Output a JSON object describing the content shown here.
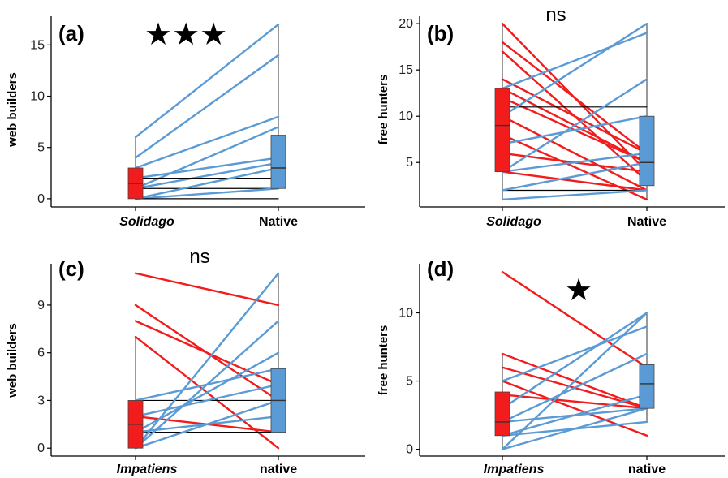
{
  "colors": {
    "red": "#f21c1c",
    "blue": "#5b9bd5",
    "whisker": "#333333",
    "axis": "#000000"
  },
  "chart_data": [
    {
      "type": "box-paired",
      "panel_label": "(a)",
      "significance": "★★★",
      "ylabel": "web builders",
      "categories": [
        "Solidago",
        "Native"
      ],
      "category_italic": [
        true,
        false
      ],
      "ylim": [
        -0.8,
        17.8
      ],
      "yticks": [
        0,
        5,
        10,
        15
      ],
      "boxes": [
        {
          "min": 0,
          "q1": 0,
          "median": 1.5,
          "q3": 3,
          "max": 6
        },
        {
          "min": 1,
          "q1": 1,
          "median": 3,
          "q3": 6.2,
          "max": 17
        }
      ],
      "pairs": [
        {
          "from": 6,
          "to": 17,
          "color": "blue"
        },
        {
          "from": 4,
          "to": 14,
          "color": "blue"
        },
        {
          "from": 3,
          "to": 8,
          "color": "blue"
        },
        {
          "from": 1,
          "to": 7,
          "color": "blue"
        },
        {
          "from": 2,
          "to": 4,
          "color": "blue"
        },
        {
          "from": 1,
          "to": 3.5,
          "color": "blue"
        },
        {
          "from": 2,
          "to": 2,
          "color": "black"
        },
        {
          "from": 1,
          "to": 1,
          "color": "black"
        },
        {
          "from": 0,
          "to": 3,
          "color": "blue"
        },
        {
          "from": 0,
          "to": 1,
          "color": "blue"
        },
        {
          "from": 0,
          "to": 0,
          "color": "black"
        }
      ]
    },
    {
      "type": "box-paired",
      "panel_label": "(b)",
      "significance": "ns",
      "ylabel": "free hunters",
      "categories": [
        "Solidago",
        "Native"
      ],
      "category_italic": [
        true,
        false
      ],
      "ylim": [
        0.2,
        20.8
      ],
      "yticks": [
        5,
        10,
        15,
        20
      ],
      "boxes": [
        {
          "min": 1,
          "q1": 4,
          "median": 9,
          "q3": 13,
          "max": 20
        },
        {
          "min": 1,
          "q1": 2.5,
          "median": 5,
          "q3": 10,
          "max": 20
        }
      ],
      "pairs": [
        {
          "from": 20,
          "to": 4,
          "color": "red"
        },
        {
          "from": 18,
          "to": 6,
          "color": "red"
        },
        {
          "from": 17,
          "to": 3,
          "color": "red"
        },
        {
          "from": 14,
          "to": 6,
          "color": "red"
        },
        {
          "from": 13,
          "to": 5,
          "color": "red"
        },
        {
          "from": 12,
          "to": 5,
          "color": "red"
        },
        {
          "from": 10,
          "to": 2,
          "color": "red"
        },
        {
          "from": 8,
          "to": 1,
          "color": "red"
        },
        {
          "from": 6,
          "to": 4,
          "color": "red"
        },
        {
          "from": 4,
          "to": 2,
          "color": "red"
        },
        {
          "from": 11,
          "to": 11,
          "color": "black"
        },
        {
          "from": 2,
          "to": 2,
          "color": "black"
        },
        {
          "from": 10,
          "to": 20,
          "color": "blue"
        },
        {
          "from": 13,
          "to": 19,
          "color": "blue"
        },
        {
          "from": 4,
          "to": 14,
          "color": "blue"
        },
        {
          "from": 7,
          "to": 10,
          "color": "blue"
        },
        {
          "from": 4,
          "to": 6,
          "color": "blue"
        },
        {
          "from": 2,
          "to": 5,
          "color": "blue"
        },
        {
          "from": 1,
          "to": 2,
          "color": "blue"
        }
      ]
    },
    {
      "type": "box-paired",
      "panel_label": "(c)",
      "significance": "ns",
      "ylabel": "web builders",
      "categories": [
        "Impatiens",
        "native"
      ],
      "category_italic": [
        true,
        false
      ],
      "ylim": [
        -0.5,
        11.6
      ],
      "yticks": [
        0,
        3,
        6,
        9
      ],
      "boxes": [
        {
          "min": 0,
          "q1": 0,
          "median": 1.5,
          "q3": 3,
          "max": 7
        },
        {
          "min": 1,
          "q1": 1,
          "median": 3,
          "q3": 5,
          "max": 11
        }
      ],
      "pairs": [
        {
          "from": 11,
          "to": 9,
          "color": "red"
        },
        {
          "from": 9,
          "to": 3,
          "color": "red"
        },
        {
          "from": 8,
          "to": 4,
          "color": "red"
        },
        {
          "from": 7,
          "to": 0,
          "color": "red"
        },
        {
          "from": 2,
          "to": 1,
          "color": "red"
        },
        {
          "from": 3,
          "to": 3,
          "color": "black"
        },
        {
          "from": 1,
          "to": 1,
          "color": "black"
        },
        {
          "from": 0,
          "to": 11,
          "color": "blue"
        },
        {
          "from": 0,
          "to": 8,
          "color": "blue"
        },
        {
          "from": 1,
          "to": 6,
          "color": "blue"
        },
        {
          "from": 2,
          "to": 4,
          "color": "blue"
        },
        {
          "from": 3,
          "to": 5,
          "color": "blue"
        },
        {
          "from": 0,
          "to": 3,
          "color": "blue"
        },
        {
          "from": 1,
          "to": 2,
          "color": "blue"
        }
      ]
    },
    {
      "type": "box-paired",
      "panel_label": "(d)",
      "significance": "★",
      "ylabel": "free hunters",
      "categories": [
        "Impatiens",
        "native"
      ],
      "category_italic": [
        true,
        false
      ],
      "ylim": [
        -0.5,
        13.6
      ],
      "yticks": [
        0,
        5,
        10
      ],
      "boxes": [
        {
          "min": 0,
          "q1": 1,
          "median": 2,
          "q3": 4.2,
          "max": 7
        },
        {
          "min": 2,
          "q1": 3,
          "median": 4.8,
          "q3": 6.2,
          "max": 10
        }
      ],
      "pairs": [
        {
          "from": 13,
          "to": 6,
          "color": "red"
        },
        {
          "from": 7,
          "to": 3,
          "color": "red"
        },
        {
          "from": 6,
          "to": 3,
          "color": "red"
        },
        {
          "from": 5,
          "to": 1,
          "color": "red"
        },
        {
          "from": 4,
          "to": 3,
          "color": "red"
        },
        {
          "from": 5,
          "to": 9,
          "color": "blue"
        },
        {
          "from": 3,
          "to": 10,
          "color": "blue"
        },
        {
          "from": 2,
          "to": 7,
          "color": "blue"
        },
        {
          "from": 0,
          "to": 10,
          "color": "blue"
        },
        {
          "from": 1,
          "to": 4,
          "color": "blue"
        },
        {
          "from": 0,
          "to": 3,
          "color": "blue"
        },
        {
          "from": 1,
          "to": 2,
          "color": "blue"
        },
        {
          "from": 2,
          "to": 3,
          "color": "blue"
        }
      ]
    }
  ]
}
